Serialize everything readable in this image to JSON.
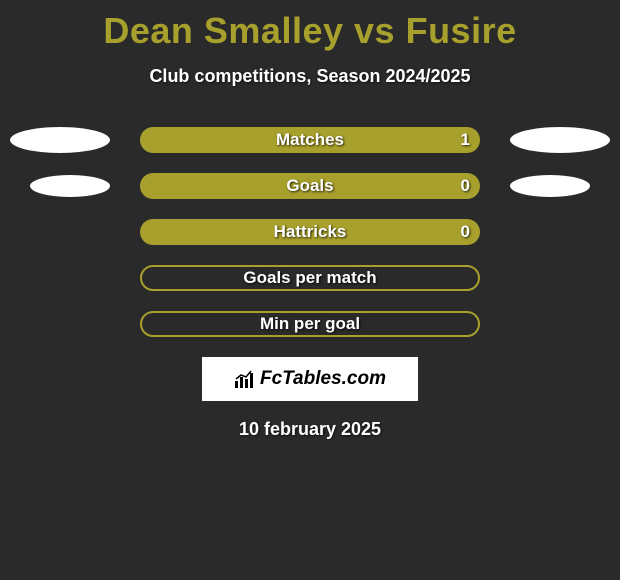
{
  "title": {
    "player1": "Dean Smalley",
    "vs": "vs",
    "player2": "Fusire",
    "color": "#a8a02c",
    "fontsize": 36
  },
  "subtitle": {
    "text": "Club competitions, Season 2024/2025",
    "color": "#ffffff",
    "fontsize": 18
  },
  "background_color": "#2a2a2a",
  "bar_color": "#a8a02c",
  "text_color": "#ffffff",
  "ellipse_color": "#ffffff",
  "rows": [
    {
      "label": "Matches",
      "left_value": null,
      "right_value": "1",
      "filled": true,
      "left_ellipse": "big",
      "right_ellipse": "big"
    },
    {
      "label": "Goals",
      "left_value": null,
      "right_value": "0",
      "filled": true,
      "left_ellipse": "small",
      "right_ellipse": "small"
    },
    {
      "label": "Hattricks",
      "left_value": null,
      "right_value": "0",
      "filled": true,
      "left_ellipse": null,
      "right_ellipse": null
    },
    {
      "label": "Goals per match",
      "left_value": null,
      "right_value": null,
      "filled": false,
      "left_ellipse": null,
      "right_ellipse": null
    },
    {
      "label": "Min per goal",
      "left_value": null,
      "right_value": null,
      "filled": false,
      "left_ellipse": null,
      "right_ellipse": null
    }
  ],
  "logo": {
    "text": "FcTables.com",
    "background": "#ffffff",
    "text_color": "#000000",
    "fontsize": 19
  },
  "date": {
    "text": "10 february 2025",
    "color": "#ffffff",
    "fontsize": 18
  }
}
